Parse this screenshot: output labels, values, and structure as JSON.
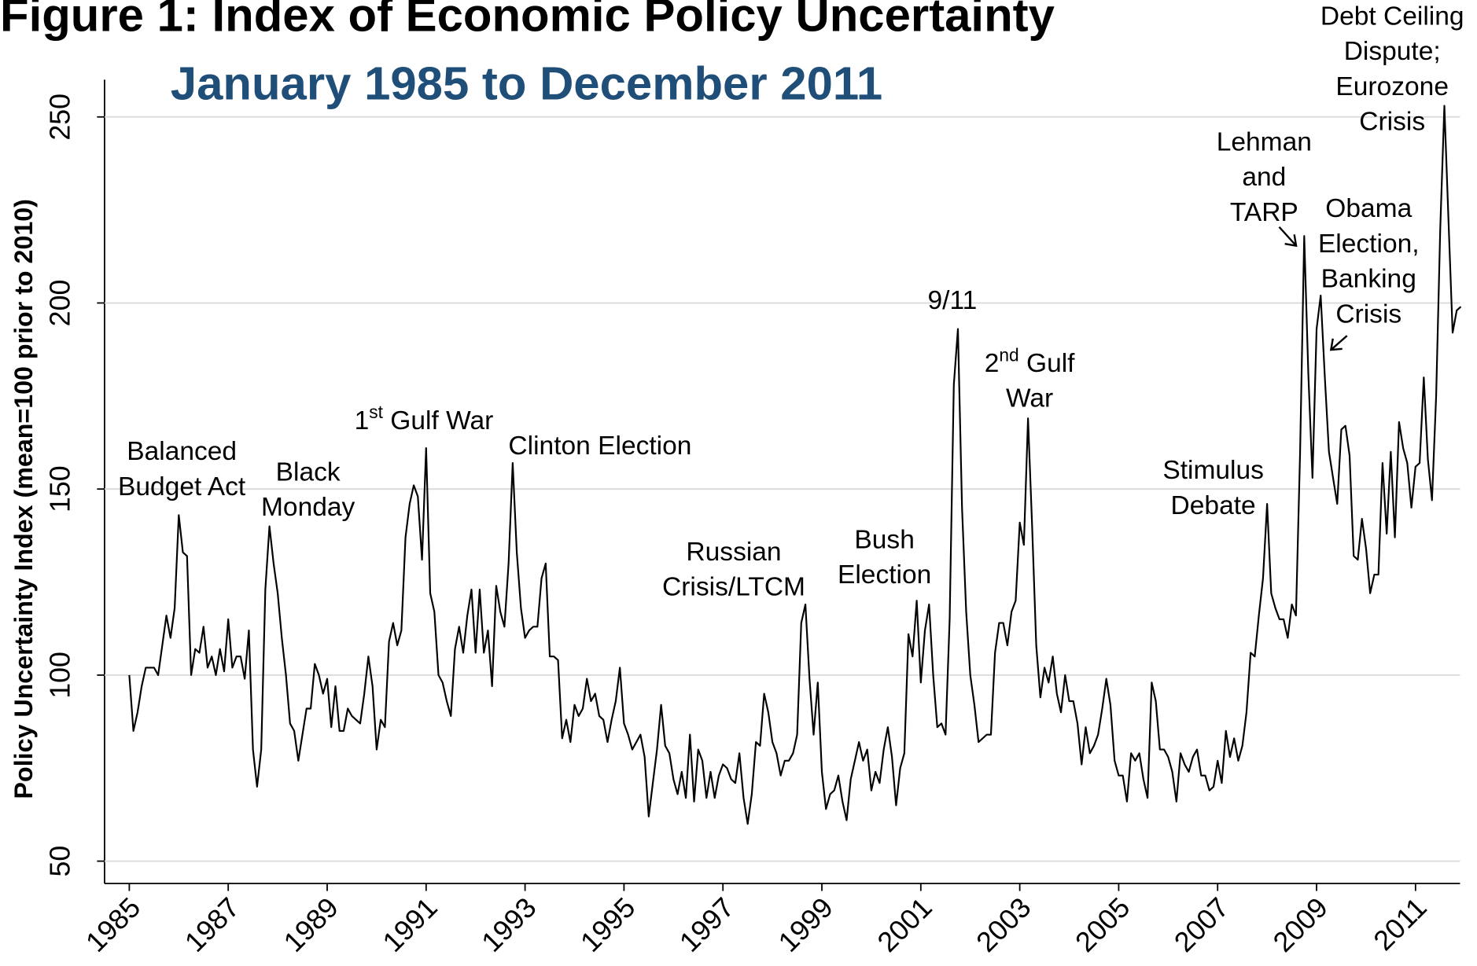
{
  "chart_data": {
    "type": "line",
    "title": "Figure 1: Index of Economic Policy Uncertainty",
    "subtitle": "January 1985 to December 2011",
    "y_label": "Policy Uncertainty Index (mean=100 prior to 2010)",
    "color": "#000000",
    "subtitle_color": "#1f4e79",
    "grid": true,
    "xlim": [
      1984.5,
      2011.9
    ],
    "xticks": [
      1985,
      1987,
      1989,
      1991,
      1993,
      1995,
      1997,
      1999,
      2001,
      2003,
      2005,
      2007,
      2009,
      2011
    ],
    "ylim": [
      44,
      260
    ],
    "yticks": [
      50,
      100,
      150,
      200,
      250
    ],
    "x": [
      1985,
      1985.083,
      1985.167,
      1985.25,
      1985.333,
      1985.417,
      1985.5,
      1985.583,
      1985.667,
      1985.75,
      1985.833,
      1985.917,
      1986,
      1986.083,
      1986.167,
      1986.25,
      1986.333,
      1986.417,
      1986.5,
      1986.583,
      1986.667,
      1986.75,
      1986.833,
      1986.917,
      1987,
      1987.083,
      1987.167,
      1987.25,
      1987.333,
      1987.417,
      1987.5,
      1987.583,
      1987.667,
      1987.75,
      1987.833,
      1987.917,
      1988,
      1988.083,
      1988.167,
      1988.25,
      1988.333,
      1988.417,
      1988.5,
      1988.583,
      1988.667,
      1988.75,
      1988.833,
      1988.917,
      1989,
      1989.083,
      1989.167,
      1989.25,
      1989.333,
      1989.417,
      1989.5,
      1989.583,
      1989.667,
      1989.75,
      1989.833,
      1989.917,
      1990,
      1990.083,
      1990.167,
      1990.25,
      1990.333,
      1990.417,
      1990.5,
      1990.583,
      1990.667,
      1990.75,
      1990.833,
      1990.917,
      1991,
      1991.083,
      1991.167,
      1991.25,
      1991.333,
      1991.417,
      1991.5,
      1991.583,
      1991.667,
      1991.75,
      1991.833,
      1991.917,
      1992,
      1992.083,
      1992.167,
      1992.25,
      1992.333,
      1992.417,
      1992.5,
      1992.583,
      1992.667,
      1992.75,
      1992.833,
      1992.917,
      1993,
      1993.083,
      1993.167,
      1993.25,
      1993.333,
      1993.417,
      1993.5,
      1993.583,
      1993.667,
      1993.75,
      1993.833,
      1993.917,
      1994,
      1994.083,
      1994.167,
      1994.25,
      1994.333,
      1994.417,
      1994.5,
      1994.583,
      1994.667,
      1994.75,
      1994.833,
      1994.917,
      1995,
      1995.083,
      1995.167,
      1995.25,
      1995.333,
      1995.417,
      1995.5,
      1995.583,
      1995.667,
      1995.75,
      1995.833,
      1995.917,
      1996,
      1996.083,
      1996.167,
      1996.25,
      1996.333,
      1996.417,
      1996.5,
      1996.583,
      1996.667,
      1996.75,
      1996.833,
      1996.917,
      1997,
      1997.083,
      1997.167,
      1997.25,
      1997.333,
      1997.417,
      1997.5,
      1997.583,
      1997.667,
      1997.75,
      1997.833,
      1997.917,
      1998,
      1998.083,
      1998.167,
      1998.25,
      1998.333,
      1998.417,
      1998.5,
      1998.583,
      1998.667,
      1998.75,
      1998.833,
      1998.917,
      1999,
      1999.083,
      1999.167,
      1999.25,
      1999.333,
      1999.417,
      1999.5,
      1999.583,
      1999.667,
      1999.75,
      1999.833,
      1999.917,
      2000,
      2000.083,
      2000.167,
      2000.25,
      2000.333,
      2000.417,
      2000.5,
      2000.583,
      2000.667,
      2000.75,
      2000.833,
      2000.917,
      2001,
      2001.083,
      2001.167,
      2001.25,
      2001.333,
      2001.417,
      2001.5,
      2001.583,
      2001.667,
      2001.75,
      2001.833,
      2001.917,
      2002,
      2002.083,
      2002.167,
      2002.25,
      2002.333,
      2002.417,
      2002.5,
      2002.583,
      2002.667,
      2002.75,
      2002.833,
      2002.917,
      2003,
      2003.083,
      2003.167,
      2003.25,
      2003.333,
      2003.417,
      2003.5,
      2003.583,
      2003.667,
      2003.75,
      2003.833,
      2003.917,
      2004,
      2004.083,
      2004.167,
      2004.25,
      2004.333,
      2004.417,
      2004.5,
      2004.583,
      2004.667,
      2004.75,
      2004.833,
      2004.917,
      2005,
      2005.083,
      2005.167,
      2005.25,
      2005.333,
      2005.417,
      2005.5,
      2005.583,
      2005.667,
      2005.75,
      2005.833,
      2005.917,
      2006,
      2006.083,
      2006.167,
      2006.25,
      2006.333,
      2006.417,
      2006.5,
      2006.583,
      2006.667,
      2006.75,
      2006.833,
      2006.917,
      2007,
      2007.083,
      2007.167,
      2007.25,
      2007.333,
      2007.417,
      2007.5,
      2007.583,
      2007.667,
      2007.75,
      2007.833,
      2007.917,
      2008,
      2008.083,
      2008.167,
      2008.25,
      2008.333,
      2008.417,
      2008.5,
      2008.583,
      2008.667,
      2008.75,
      2008.833,
      2008.917,
      2009,
      2009.083,
      2009.167,
      2009.25,
      2009.333,
      2009.417,
      2009.5,
      2009.583,
      2009.667,
      2009.75,
      2009.833,
      2009.917,
      2010,
      2010.083,
      2010.167,
      2010.25,
      2010.333,
      2010.417,
      2010.5,
      2010.583,
      2010.667,
      2010.75,
      2010.833,
      2010.917,
      2011,
      2011.083,
      2011.167,
      2011.25,
      2011.333,
      2011.417,
      2011.5,
      2011.583,
      2011.667,
      2011.75,
      2011.833,
      2011.917
    ],
    "values": [
      100,
      85,
      90,
      97,
      102,
      102,
      102,
      100,
      108,
      116,
      110,
      118,
      143,
      133,
      132,
      100,
      107,
      106,
      113,
      102,
      105,
      100,
      107,
      101,
      115,
      102,
      105,
      105,
      99,
      112,
      80,
      70,
      80,
      123,
      140,
      130,
      122,
      110,
      100,
      87,
      85,
      77,
      84,
      91,
      91,
      103,
      100,
      95,
      99,
      86,
      97,
      85,
      85,
      91,
      89,
      88,
      87,
      95,
      105,
      97,
      80,
      88,
      86,
      109,
      114,
      108,
      112,
      137,
      146,
      151,
      148,
      131,
      161,
      122,
      117,
      100,
      98,
      93,
      89,
      107,
      113,
      106,
      116,
      123,
      106,
      123,
      106,
      112,
      97,
      124,
      117,
      113,
      130,
      157,
      133,
      118,
      110,
      112,
      113,
      113,
      126,
      130,
      105,
      105,
      104,
      83,
      88,
      82,
      92,
      89,
      91,
      99,
      93,
      95,
      89,
      88,
      82,
      88,
      93,
      102,
      87,
      84,
      80,
      82,
      84,
      78,
      62,
      71,
      80,
      92,
      81,
      79,
      72,
      68,
      74,
      67,
      84,
      66,
      80,
      77,
      67,
      74,
      67,
      73,
      76,
      75,
      72,
      71,
      79,
      67,
      60,
      68,
      82,
      81,
      95,
      90,
      82,
      79,
      73,
      77,
      77,
      79,
      84,
      114,
      119,
      99,
      84,
      98,
      74,
      64,
      68,
      69,
      73,
      66,
      61,
      72,
      77,
      82,
      77,
      80,
      69,
      74,
      71,
      80,
      86,
      78,
      65,
      75,
      79,
      111,
      105,
      120,
      98,
      112,
      119,
      100,
      86,
      87,
      84,
      115,
      178,
      193,
      145,
      117,
      100,
      92,
      82,
      83,
      84,
      84,
      106,
      114,
      114,
      108,
      117,
      120,
      141,
      135,
      169,
      140,
      108,
      94,
      102,
      98,
      105,
      95,
      90,
      100,
      93,
      93,
      87,
      76,
      86,
      79,
      81,
      84,
      91,
      99,
      92,
      77,
      73,
      73,
      66,
      79,
      77,
      79,
      72,
      67,
      98,
      93,
      80,
      80,
      78,
      74,
      66,
      79,
      76,
      74,
      78,
      80,
      73,
      73,
      69,
      70,
      77,
      71,
      85,
      78,
      83,
      77,
      81,
      90,
      106,
      105,
      116,
      126,
      146,
      122,
      118,
      115,
      115,
      110,
      119,
      116,
      160,
      218,
      181,
      153,
      193,
      202,
      180,
      160,
      153,
      146,
      166,
      167,
      159,
      132,
      131,
      142,
      134,
      122,
      127,
      127,
      157,
      138,
      160,
      137,
      168,
      161,
      157,
      145,
      156,
      157,
      180,
      158,
      147,
      175,
      220,
      253,
      222,
      192,
      198,
      199
    ],
    "annotations": [
      {
        "lines": [
          "Balanced",
          "Budget Act"
        ]
      },
      {
        "lines": [
          "Black",
          "Monday"
        ]
      },
      {
        "lines": [
          [
            {
              "text": "1"
            },
            {
              "text": "st",
              "sup": true
            },
            {
              "text": " Gulf War"
            }
          ]
        ]
      },
      {
        "lines": [
          "Clinton Election"
        ]
      },
      {
        "lines": [
          "Russian",
          "Crisis/LTCM"
        ]
      },
      {
        "lines": [
          "Bush",
          "Election"
        ]
      },
      {
        "lines": [
          "9/11"
        ]
      },
      {
        "lines": [
          [
            {
              "text": "2"
            },
            {
              "text": "nd",
              "sup": true
            },
            {
              "text": " Gulf"
            }
          ],
          "War"
        ]
      },
      {
        "lines": [
          "Stimulus",
          "Debate"
        ]
      },
      {
        "lines": [
          "Lehman",
          "and",
          "TARP"
        ]
      },
      {
        "lines": [
          "Obama",
          "Election,",
          "Banking",
          "Crisis"
        ]
      },
      {
        "lines": [
          "Debt Ceiling",
          "Dispute;",
          "Eurozone",
          "Crisis"
        ]
      }
    ]
  }
}
